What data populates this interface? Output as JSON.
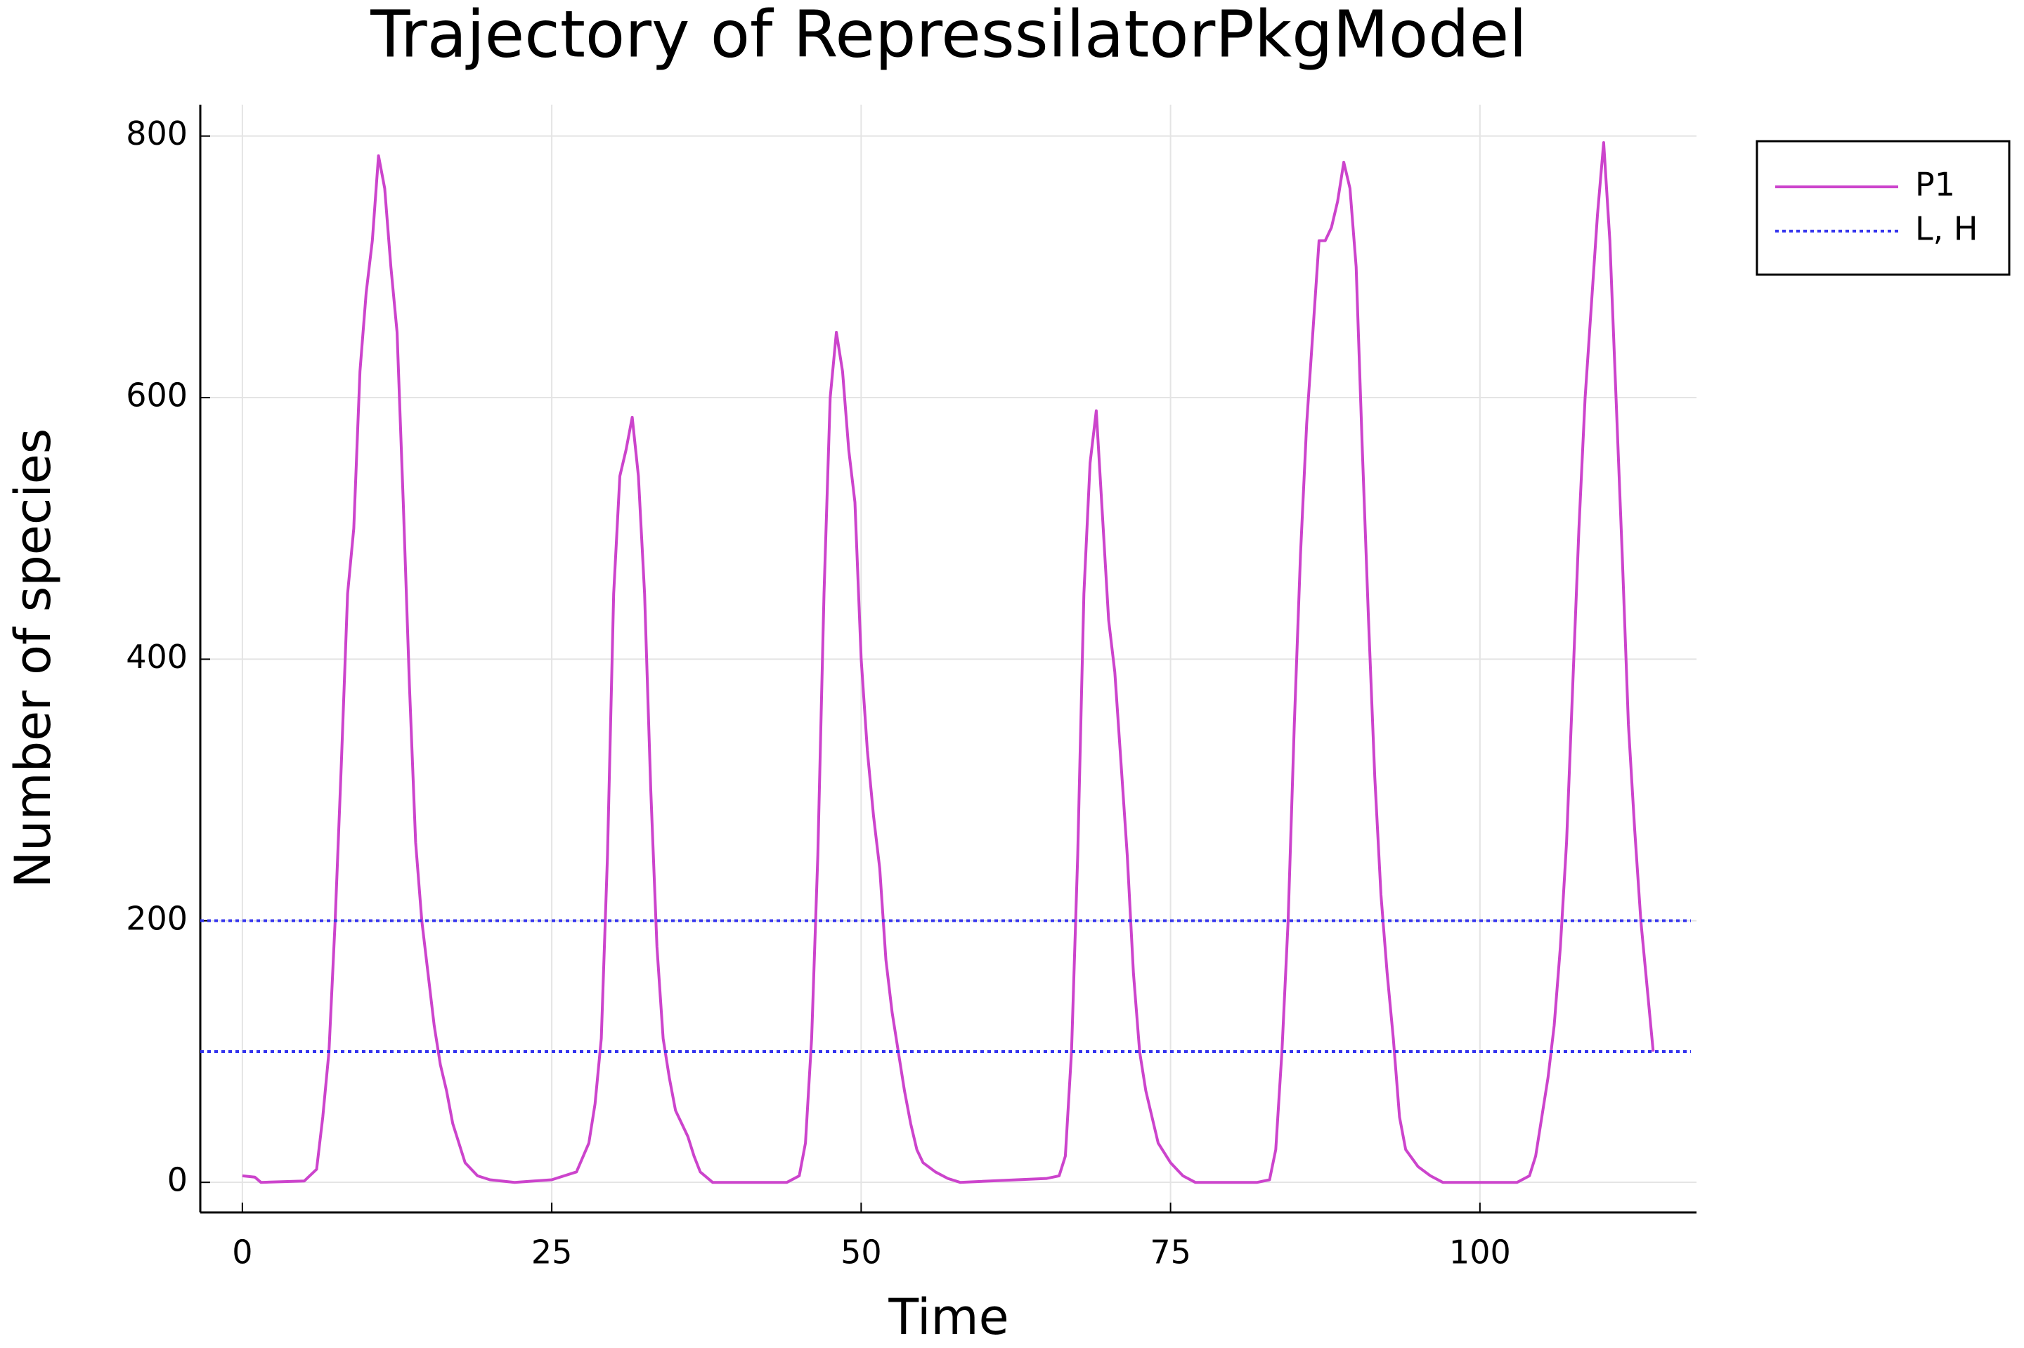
{
  "chart_data": {
    "type": "line",
    "title": "Trajectory of RepressilatorPkgModel",
    "xlabel": "Time",
    "ylabel": "Number of species",
    "xlim": [
      -3.4,
      117.5
    ],
    "xticks": [
      0,
      25,
      50,
      75,
      100
    ],
    "ylim": [
      -23,
      824
    ],
    "yticks": [
      0,
      200,
      400,
      600,
      800
    ],
    "grid": true,
    "legend": "outertopright",
    "series": [
      {
        "name": "P1",
        "color": "#cc44cc",
        "style": "solid",
        "x": [
          0,
          1,
          1.5,
          5,
          6,
          6.5,
          7,
          7.5,
          8,
          8.5,
          9,
          9.5,
          10,
          10.5,
          11,
          11.5,
          12,
          12.5,
          13,
          13.5,
          14,
          14.5,
          15,
          15.5,
          16,
          16.5,
          17,
          17.5,
          18,
          19,
          20,
          22,
          25,
          27,
          28,
          28.5,
          29,
          29.5,
          30,
          30.5,
          31,
          31.5,
          32,
          32.5,
          33,
          33.5,
          34,
          34.5,
          35,
          35.5,
          36,
          36.5,
          37,
          38,
          44,
          45,
          45.5,
          46,
          46.5,
          47,
          47.5,
          48,
          48.5,
          49,
          49.5,
          50,
          50.5,
          51,
          51.5,
          52,
          52.5,
          53,
          53.5,
          54,
          54.5,
          55,
          56,
          57,
          58,
          65,
          66,
          66.5,
          67,
          67.5,
          68,
          68.5,
          69,
          69.5,
          70,
          70.5,
          71,
          71.5,
          72,
          72.5,
          73,
          73.5,
          74,
          75,
          76,
          77,
          82,
          83,
          83.5,
          84,
          84.5,
          85,
          85.5,
          86,
          86.5,
          87,
          87.5,
          88,
          88.5,
          89,
          89.5,
          90,
          90.5,
          91,
          91.5,
          92,
          92.5,
          93,
          93.5,
          94,
          95,
          96,
          97,
          103,
          104,
          104.5,
          105,
          105.5,
          106,
          106.5,
          107,
          107.5,
          108,
          108.5,
          109,
          109.5,
          110,
          110.5,
          111,
          111.5,
          112,
          112.5,
          113,
          113.5,
          114
        ],
        "values": [
          5,
          4,
          0,
          1,
          10,
          50,
          100,
          200,
          320,
          450,
          500,
          620,
          680,
          720,
          785,
          760,
          700,
          650,
          520,
          380,
          260,
          200,
          160,
          120,
          90,
          70,
          45,
          30,
          15,
          5,
          2,
          0,
          2,
          8,
          30,
          60,
          110,
          250,
          450,
          540,
          560,
          585,
          540,
          450,
          300,
          180,
          110,
          80,
          55,
          45,
          35,
          20,
          8,
          0,
          0,
          5,
          30,
          110,
          250,
          450,
          600,
          650,
          620,
          560,
          520,
          400,
          330,
          280,
          240,
          170,
          130,
          100,
          70,
          45,
          25,
          15,
          8,
          3,
          0,
          3,
          5,
          20,
          100,
          250,
          450,
          550,
          590,
          510,
          430,
          390,
          320,
          250,
          160,
          100,
          70,
          50,
          30,
          15,
          5,
          0,
          0,
          2,
          25,
          100,
          200,
          350,
          480,
          580,
          650,
          720,
          720,
          730,
          750,
          780,
          760,
          700,
          560,
          430,
          310,
          220,
          160,
          110,
          50,
          25,
          12,
          5,
          0,
          0,
          5,
          20,
          50,
          80,
          120,
          180,
          260,
          380,
          500,
          600,
          670,
          740,
          795,
          720,
          600,
          480,
          350,
          270,
          200,
          150,
          100
        ]
      },
      {
        "name": "L, H",
        "color": "#3333ee",
        "style": "dotted",
        "hlines": [
          100,
          200
        ]
      }
    ]
  }
}
